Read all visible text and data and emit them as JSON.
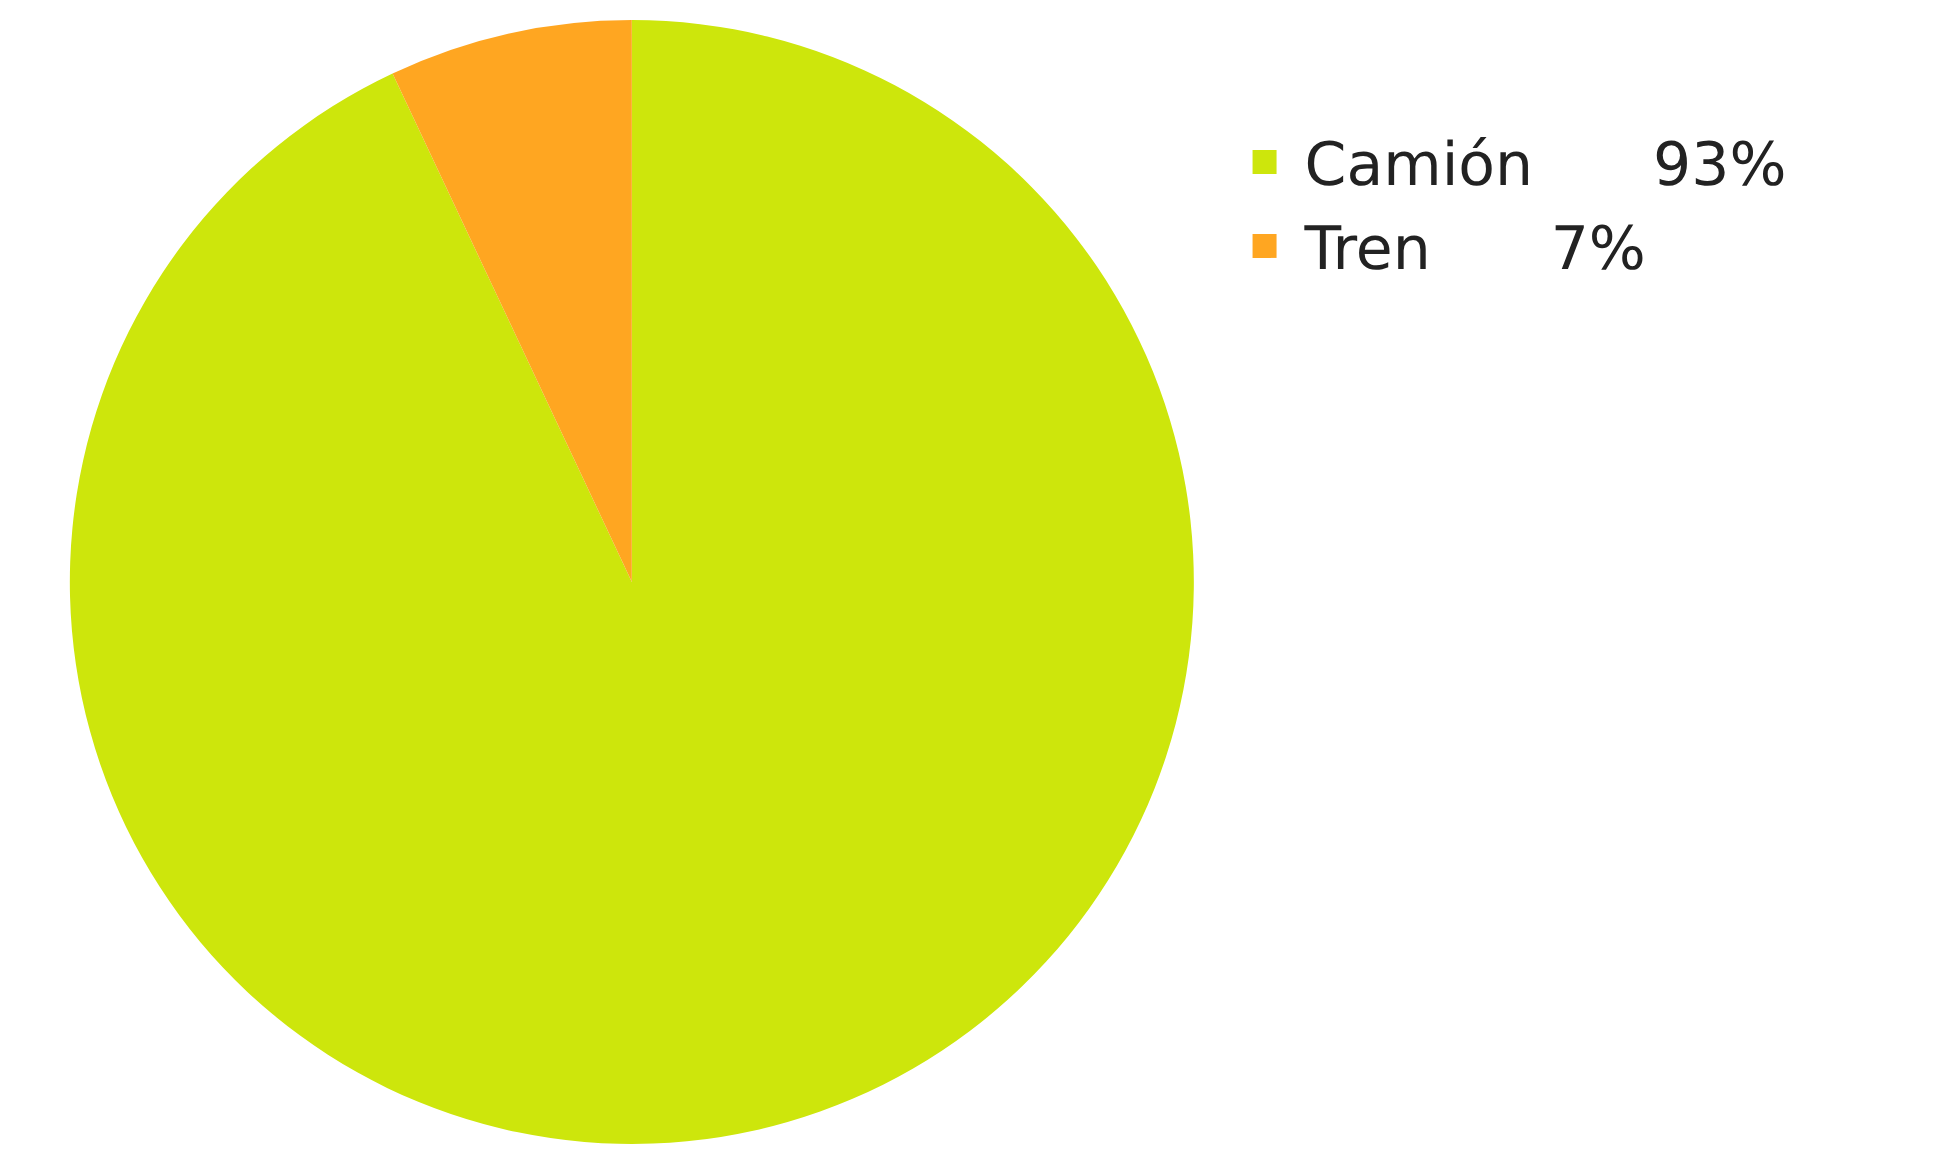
{
  "chart_data": {
    "type": "pie",
    "categories": [
      "Camión",
      "Tren"
    ],
    "values": [
      93,
      7
    ],
    "colors": [
      "#cde60c",
      "#ffa621"
    ],
    "value_labels": [
      "93%",
      "7%"
    ],
    "legend": "top right"
  }
}
